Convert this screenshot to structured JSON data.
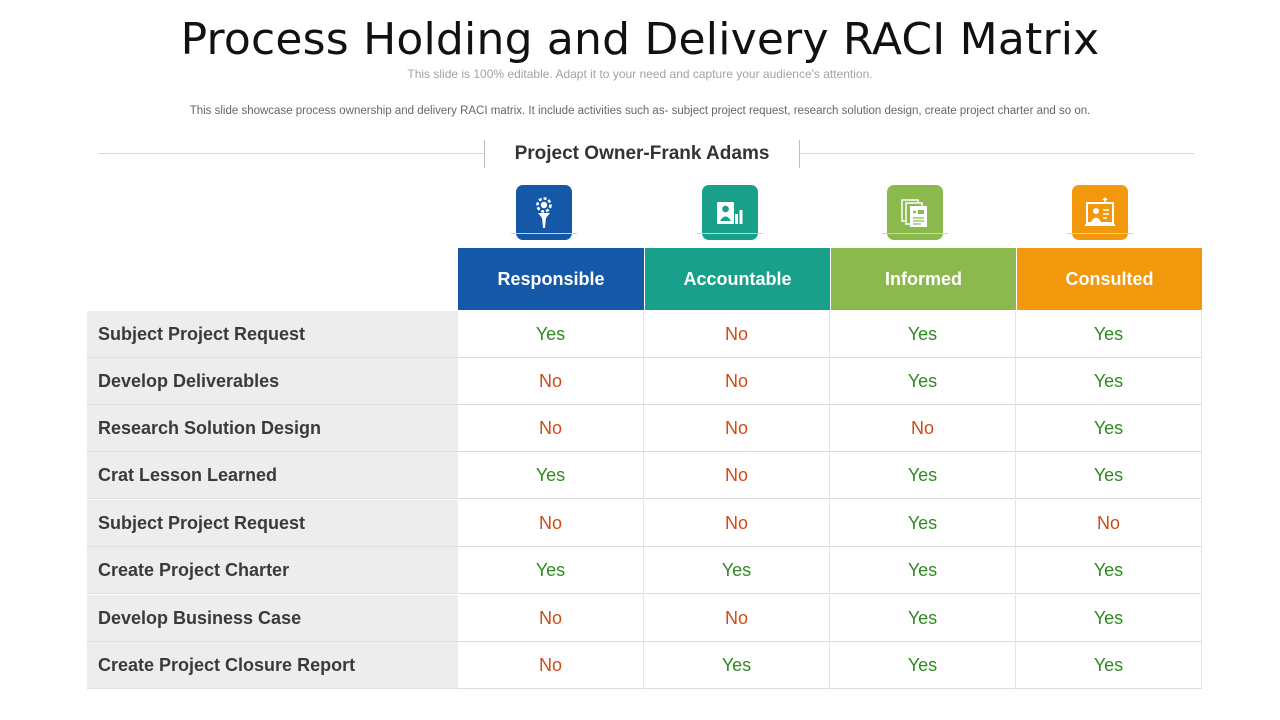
{
  "title": "Process Holding and Delivery RACI Matrix",
  "subtitle": "This slide is 100% editable. Adapt it to your need and capture your audience's attention.",
  "description": "This slide showcase process ownership and delivery RACI matrix. It include activities such as- subject project request, research solution design, create project charter and so on.",
  "owner": "Project Owner-Frank Adams",
  "columns": [
    {
      "label": "Responsible",
      "color": "#1558a8",
      "icon": "gear-person-icon"
    },
    {
      "label": "Accountable",
      "color": "#18a08a",
      "icon": "person-chart-icon"
    },
    {
      "label": "Informed",
      "color": "#8cb94e",
      "icon": "documents-icon"
    },
    {
      "label": "Consulted",
      "color": "#f1980c",
      "icon": "consultant-screen-icon"
    }
  ],
  "rows": [
    {
      "label": "Subject Project Request",
      "values": [
        "Yes",
        "No",
        "Yes",
        "Yes"
      ]
    },
    {
      "label": "Develop Deliverables",
      "values": [
        "No",
        "No",
        "Yes",
        "Yes"
      ]
    },
    {
      "label": "Research Solution Design",
      "values": [
        "No",
        "No",
        "No",
        "Yes"
      ]
    },
    {
      "label": "Crat Lesson Learned",
      "values": [
        "Yes",
        "No",
        "Yes",
        "Yes"
      ]
    },
    {
      "label": "Subject Project Request",
      "values": [
        "No",
        "No",
        "Yes",
        "No"
      ]
    },
    {
      "label": "Create Project Charter",
      "values": [
        "Yes",
        "Yes",
        "Yes",
        "Yes"
      ]
    },
    {
      "label": "Develop Business Case",
      "values": [
        "No",
        "No",
        "Yes",
        "Yes"
      ]
    },
    {
      "label": "Create Project Closure Report",
      "values": [
        "No",
        "Yes",
        "Yes",
        "Yes"
      ]
    }
  ]
}
